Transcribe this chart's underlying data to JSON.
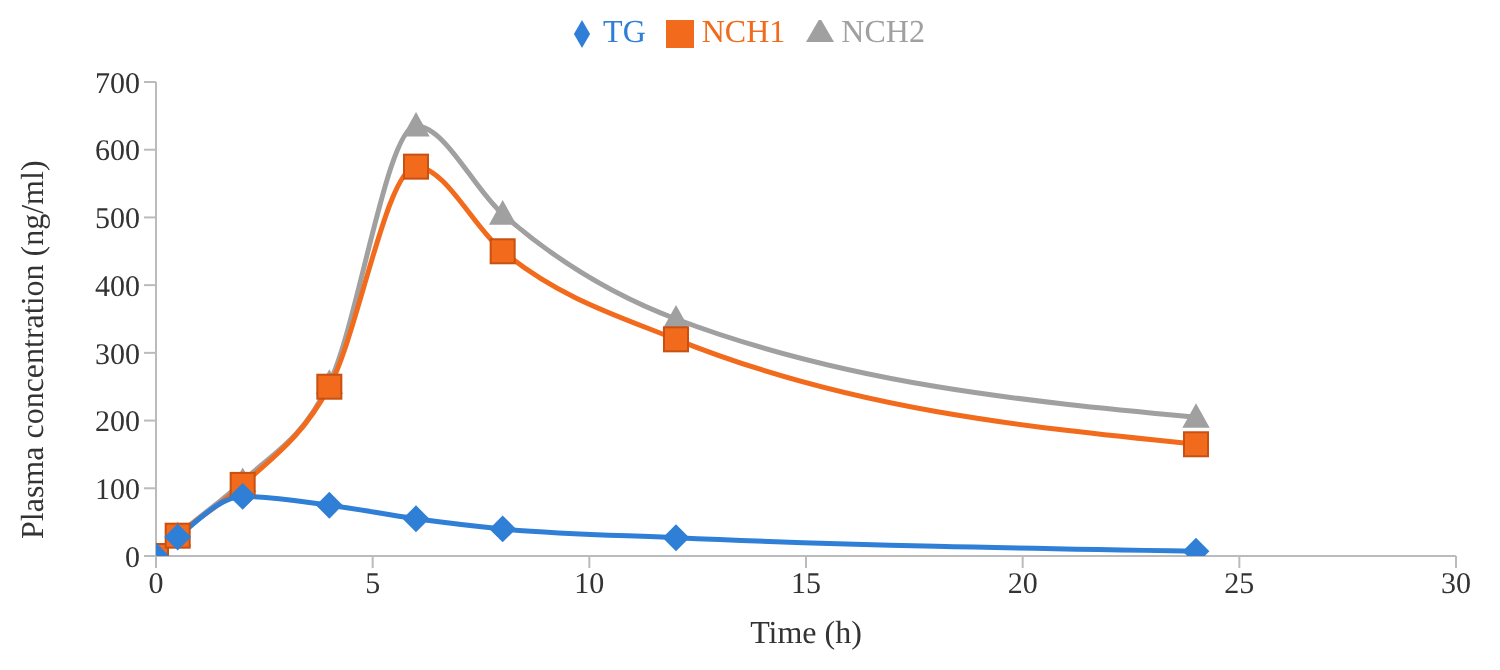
{
  "chart_data": {
    "type": "line",
    "xlabel": "Time (h)",
    "ylabel": "Plasma concentration  (ng/ml)",
    "x": [
      0,
      0.5,
      2,
      4,
      6,
      8,
      12,
      24
    ],
    "series": [
      {
        "name": "TG",
        "color": "#2f7fd6",
        "marker": "diamond",
        "values": [
          0,
          28,
          88,
          75,
          55,
          40,
          27,
          7
        ]
      },
      {
        "name": "NCH1",
        "color": "#f26b1d",
        "marker": "square",
        "values": [
          0,
          30,
          105,
          250,
          575,
          450,
          320,
          165
        ]
      },
      {
        "name": "NCH2",
        "color": "#a0a0a0",
        "marker": "triangle",
        "values": [
          0,
          30,
          110,
          255,
          635,
          505,
          350,
          205
        ]
      }
    ],
    "xlim": [
      0,
      30
    ],
    "xticks": [
      0,
      5,
      10,
      15,
      20,
      25,
      30
    ],
    "ylim": [
      0,
      700
    ],
    "yticks": [
      0,
      100,
      200,
      300,
      400,
      500,
      600,
      700
    ],
    "grid": false,
    "legend": "top"
  }
}
